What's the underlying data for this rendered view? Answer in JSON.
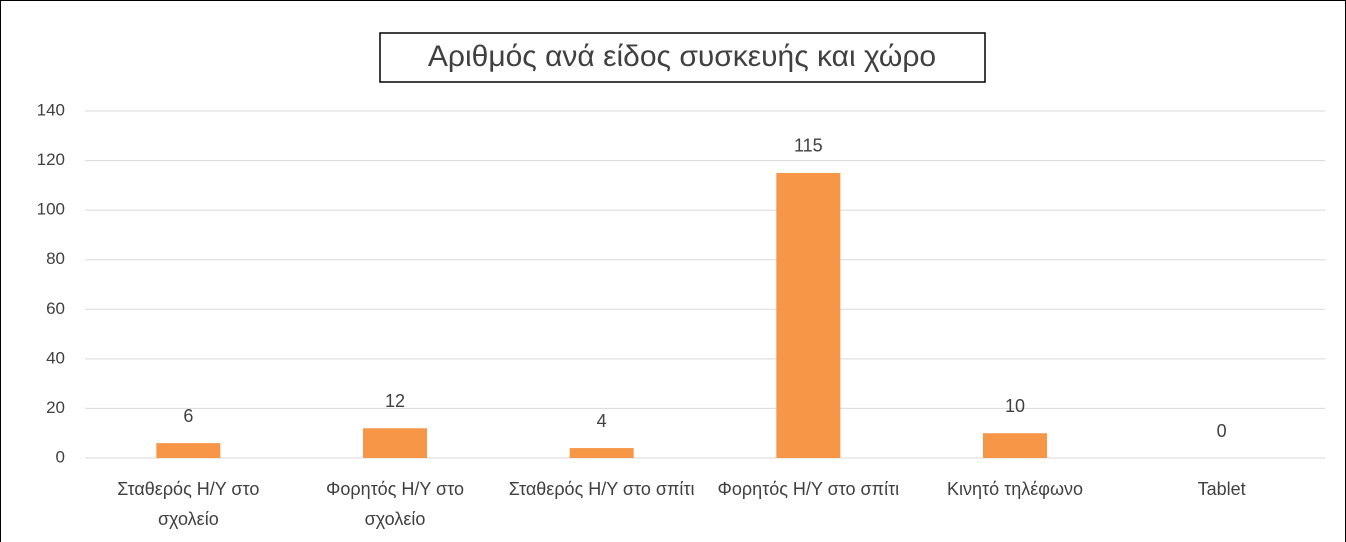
{
  "chart_data": {
    "type": "bar",
    "title": "Αριθμός ανά είδος συσκευής και χώρο",
    "categories": [
      "Σταθερός Η/Υ στο σχολείο",
      "Φορητός Η/Υ στο σχολείο",
      "Σταθερός Η/Υ στο σπίτι",
      "Φορητός Η/Υ στο σπίτι",
      "Κινητό τηλέφωνο",
      "Tablet"
    ],
    "values": [
      6,
      12,
      4,
      115,
      10,
      0
    ],
    "color": "#f79646",
    "ylim": [
      0,
      140
    ],
    "yticks": [
      0,
      20,
      40,
      60,
      80,
      100,
      120,
      140
    ],
    "grid": true
  }
}
